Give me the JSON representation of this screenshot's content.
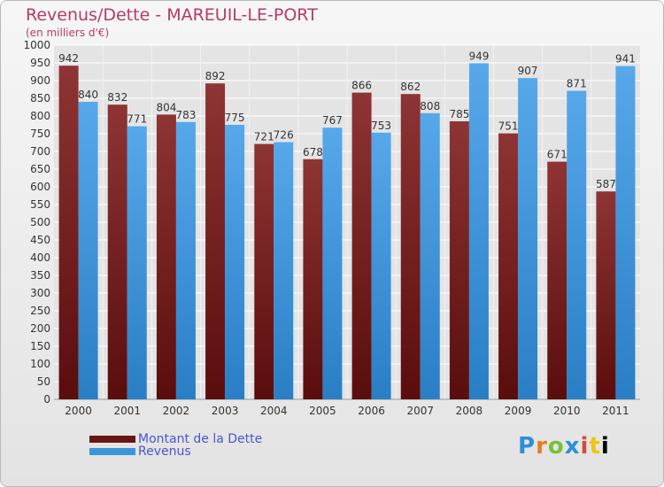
{
  "chart_data": {
    "type": "bar",
    "title": "Revenus/Dette - MAREUIL-LE-PORT",
    "subtitle": "(en milliers d'€)",
    "categories": [
      "2000",
      "2001",
      "2002",
      "2003",
      "2004",
      "2005",
      "2006",
      "2007",
      "2008",
      "2009",
      "2010",
      "2011"
    ],
    "series": [
      {
        "name": "Montant de la Dette",
        "color": "#7a1f1f",
        "values": [
          942,
          832,
          804,
          892,
          721,
          678,
          866,
          862,
          785,
          751,
          671,
          587
        ]
      },
      {
        "name": "Revenus",
        "color": "#3f95dc",
        "values": [
          840,
          771,
          783,
          775,
          726,
          767,
          753,
          808,
          949,
          907,
          871,
          941
        ]
      }
    ],
    "ylim": [
      0,
      1000
    ],
    "ytick_step": 50,
    "grid": true,
    "legend_position": "bottom-left"
  },
  "logo": "Proxiti"
}
